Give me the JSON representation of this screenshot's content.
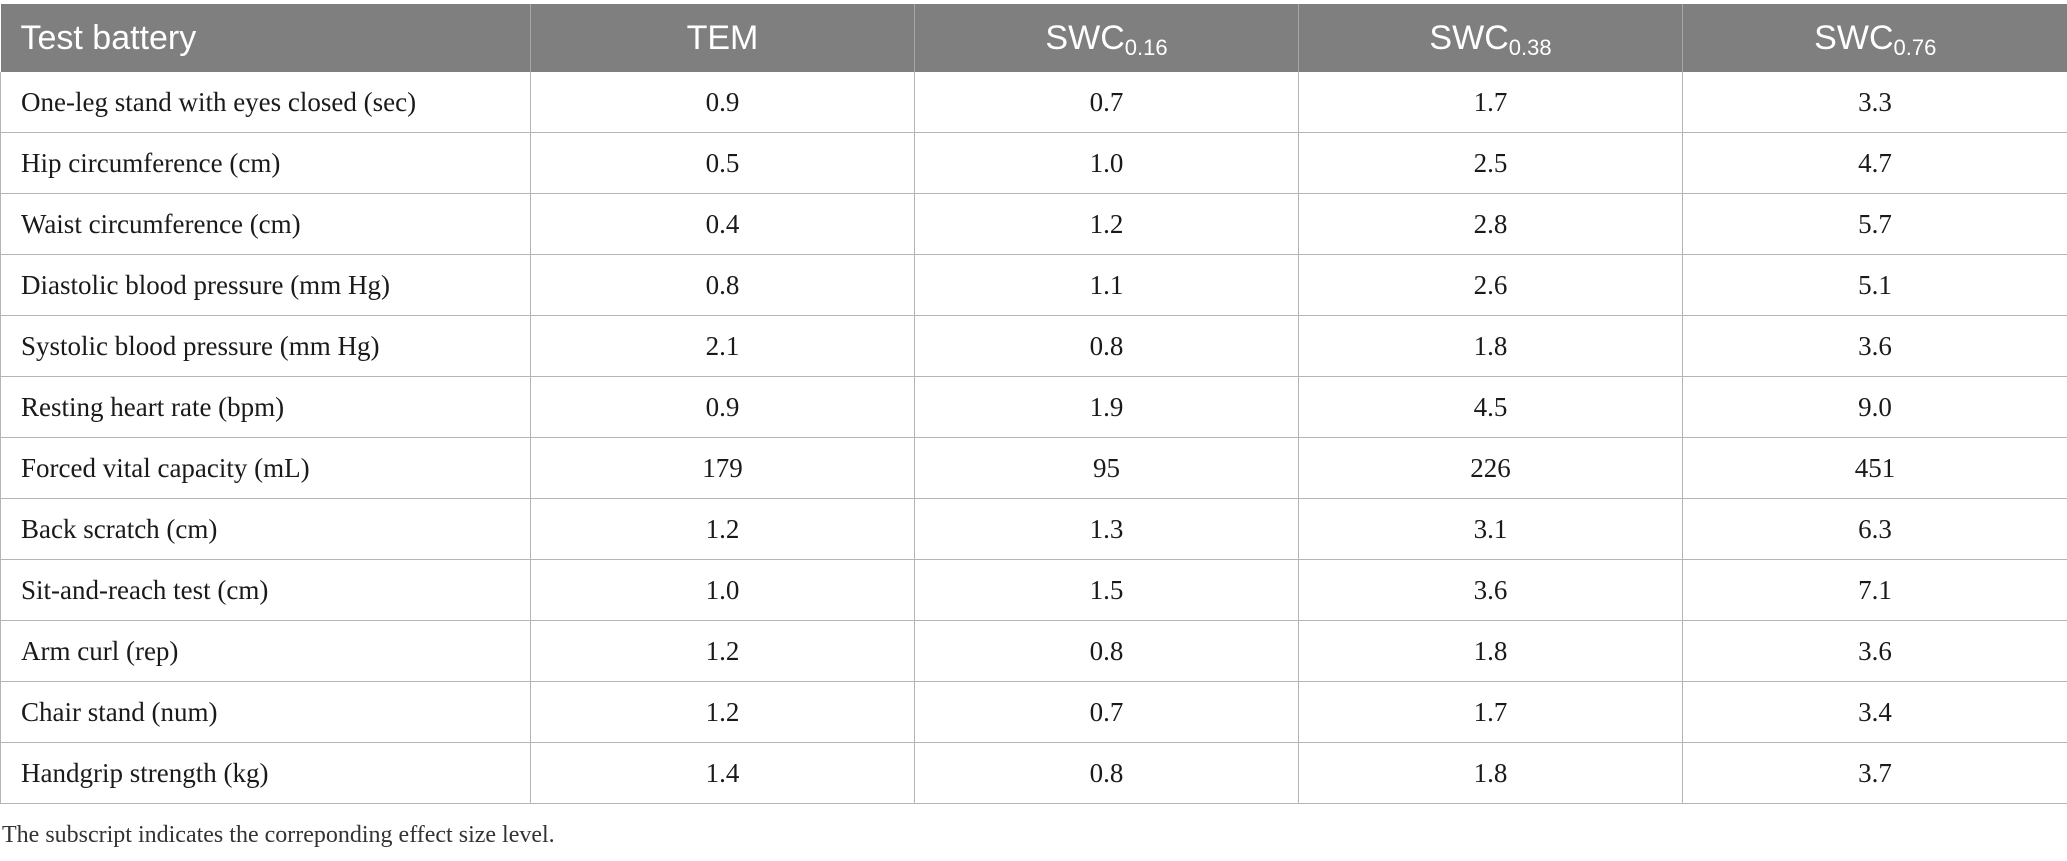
{
  "table": {
    "headers": [
      {
        "base": "Test battery",
        "sub": ""
      },
      {
        "base": "TEM",
        "sub": ""
      },
      {
        "base": "SWC",
        "sub": "0.16"
      },
      {
        "base": "SWC",
        "sub": "0.38"
      },
      {
        "base": "SWC",
        "sub": "0.76"
      }
    ],
    "rows": [
      [
        "One-leg stand with eyes closed (sec)",
        "0.9",
        "0.7",
        "1.7",
        "3.3"
      ],
      [
        "Hip circumference (cm)",
        "0.5",
        "1.0",
        "2.5",
        "4.7"
      ],
      [
        "Waist circumference (cm)",
        "0.4",
        "1.2",
        "2.8",
        "5.7"
      ],
      [
        "Diastolic blood pressure (mm Hg)",
        "0.8",
        "1.1",
        "2.6",
        "5.1"
      ],
      [
        "Systolic blood pressure (mm Hg)",
        "2.1",
        "0.8",
        "1.8",
        "3.6"
      ],
      [
        "Resting heart rate (bpm)",
        "0.9",
        "1.9",
        "4.5",
        "9.0"
      ],
      [
        "Forced vital capacity (mL)",
        "179",
        "95",
        "226",
        "451"
      ],
      [
        "Back scratch (cm)",
        "1.2",
        "1.3",
        "3.1",
        "6.3"
      ],
      [
        "Sit-and-reach test (cm)",
        "1.0",
        "1.5",
        "3.6",
        "7.1"
      ],
      [
        "Arm curl (rep)",
        "1.2",
        "0.8",
        "1.8",
        "3.6"
      ],
      [
        "Chair stand (num)",
        "1.2",
        "0.7",
        "1.7",
        "3.4"
      ],
      [
        "Handgrip strength (kg)",
        "1.4",
        "0.8",
        "1.8",
        "3.7"
      ]
    ]
  },
  "footnote": "The subscript indicates the correponding effect size level."
}
